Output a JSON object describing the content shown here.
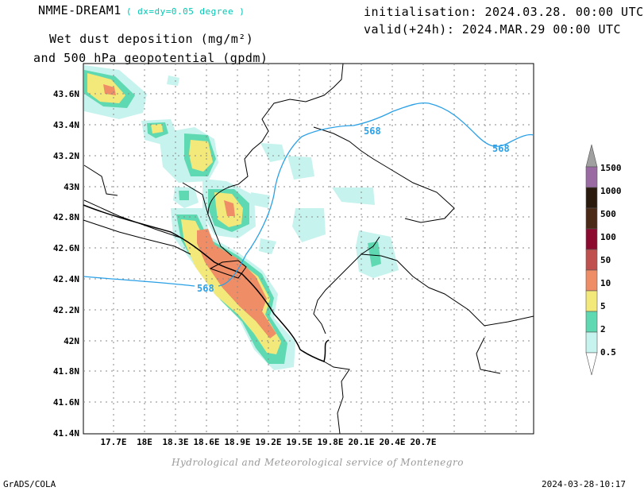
{
  "header": {
    "model": "NMME-DREAM1",
    "resolution": "( dx=dy=0.05 degree )",
    "variable_line1": "Wet dust deposition (mg/m²)",
    "variable_line2": "and 500 hPa geopotential (gpdm)",
    "initialisation": "initialisation: 2024.03.28. 00:00 UTC",
    "valid": "valid(+24h): 2024.MAR.29 00:00 UTC"
  },
  "axes": {
    "lon_ticks": [
      "17.7E",
      "18E",
      "18.3E",
      "18.6E",
      "18.9E",
      "19.2E",
      "19.5E",
      "19.8E",
      "20.1E",
      "20.4E",
      "20.7E"
    ],
    "lat_ticks": [
      "43.6N",
      "43.4N",
      "43.2N",
      "43N",
      "42.8N",
      "42.6N",
      "42.4N",
      "42.2N",
      "42N",
      "41.8N",
      "41.6N",
      "41.4N"
    ]
  },
  "legend": {
    "levels": [
      "0.5",
      "2",
      "5",
      "10",
      "50",
      "100",
      "500",
      "1000",
      "1500"
    ],
    "colors": [
      "#c6f3ee",
      "#5fd9b1",
      "#f3e87a",
      "#ef8d66",
      "#c0504d",
      "#8b0a2e",
      "#4a2a16",
      "#2a1a0e",
      "#9a6ba3"
    ],
    "top_cap_color": "#a0a0a0"
  },
  "contours": {
    "label": "568",
    "color": "#2aa0e6"
  },
  "footer": {
    "credit": "Hydrological and Meteorological service of Montenegro",
    "software": "GrADS/COLA",
    "timestamp": "2024-03-28-10:17"
  }
}
